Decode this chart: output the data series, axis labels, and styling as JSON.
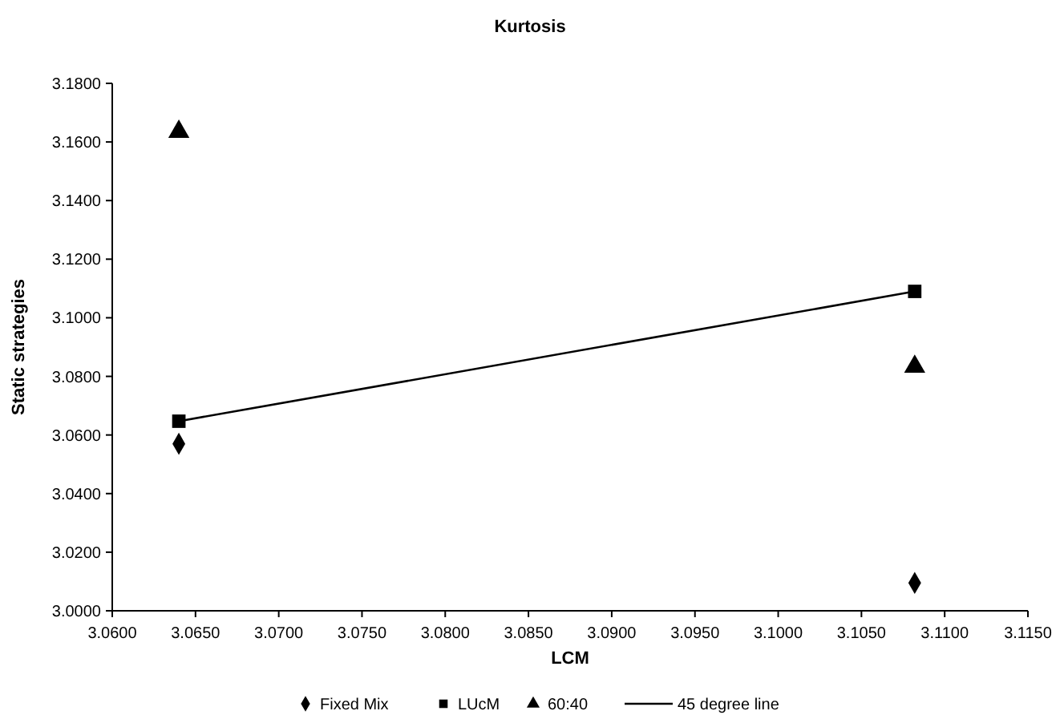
{
  "chart_data": {
    "type": "scatter",
    "title": "Kurtosis",
    "xlabel": "LCM",
    "ylabel": "Static strategies",
    "x": [
      3.064,
      3.1082
    ],
    "xlim": [
      3.06,
      3.115
    ],
    "xticks": [
      {
        "value": 3.06,
        "label": "3.0600"
      },
      {
        "value": 3.065,
        "label": "3.0650"
      },
      {
        "value": 3.07,
        "label": "3.0700"
      },
      {
        "value": 3.075,
        "label": "3.0750"
      },
      {
        "value": 3.08,
        "label": "3.0800"
      },
      {
        "value": 3.085,
        "label": "3.0850"
      },
      {
        "value": 3.09,
        "label": "3.0900"
      },
      {
        "value": 3.095,
        "label": "3.0950"
      },
      {
        "value": 3.1,
        "label": "3.1000"
      },
      {
        "value": 3.105,
        "label": "3.1050"
      },
      {
        "value": 3.11,
        "label": "3.1100"
      },
      {
        "value": 3.115,
        "label": "3.1150"
      }
    ],
    "ylim": [
      3.0,
      3.18
    ],
    "yticks": [
      {
        "value": 3.0,
        "label": "3.0000"
      },
      {
        "value": 3.02,
        "label": "3.0200"
      },
      {
        "value": 3.04,
        "label": "3.0400"
      },
      {
        "value": 3.06,
        "label": "3.0600"
      },
      {
        "value": 3.08,
        "label": "3.0800"
      },
      {
        "value": 3.1,
        "label": "3.1000"
      },
      {
        "value": 3.12,
        "label": "3.1200"
      },
      {
        "value": 3.14,
        "label": "3.1400"
      },
      {
        "value": 3.16,
        "label": "3.1600"
      },
      {
        "value": 3.18,
        "label": "3.1800"
      }
    ],
    "grid": false,
    "legend": "bottom",
    "series": [
      {
        "name": "Fixed Mix",
        "color": "#000000",
        "marker": "diamond",
        "values": [
          3.057,
          3.0095
        ]
      },
      {
        "name": "LUcM",
        "color": "#000000",
        "marker": "square",
        "values": [
          3.0647,
          3.109
        ]
      },
      {
        "name": "60:40",
        "color": "#000000",
        "marker": "triangle",
        "values": [
          3.1635,
          3.0833
        ]
      },
      {
        "name": "45 degree line",
        "type": "line",
        "color": "#000000",
        "marker": "none",
        "line_style": "solid",
        "values": [
          3.0647,
          3.109
        ]
      }
    ]
  }
}
